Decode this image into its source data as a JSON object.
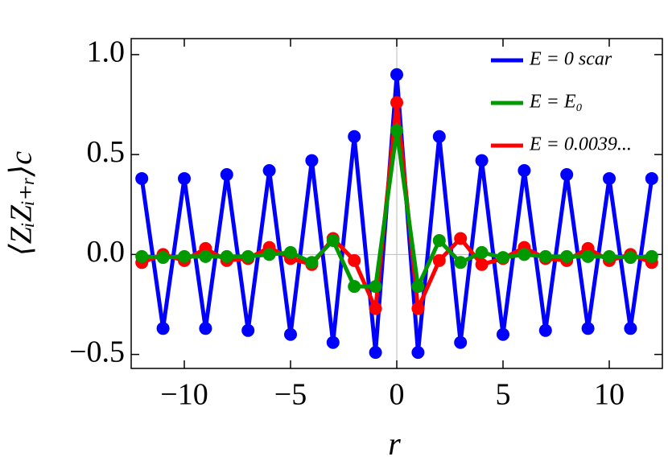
{
  "chart_data": {
    "type": "line",
    "x_label": "r",
    "y_label": "⟨ZᵢZᵢ₊ᵣ⟩c",
    "x": [
      -12,
      -11,
      -10,
      -9,
      -8,
      -7,
      -6,
      -5,
      -4,
      -3,
      -2,
      -1,
      0,
      1,
      2,
      3,
      4,
      5,
      6,
      7,
      8,
      9,
      10,
      11,
      12
    ],
    "series": [
      {
        "name": "E = 0 scar",
        "color": "#0000ff",
        "values": [
          0.38,
          -0.37,
          0.38,
          -0.37,
          0.4,
          -0.38,
          0.42,
          -0.4,
          0.47,
          -0.44,
          0.59,
          -0.49,
          0.9,
          -0.49,
          0.59,
          -0.44,
          0.47,
          -0.4,
          0.42,
          -0.38,
          0.4,
          -0.37,
          0.38,
          -0.37,
          0.38
        ]
      },
      {
        "name": "E = 0.0039...",
        "color": "#ff0000",
        "values": [
          -0.04,
          0,
          -0.03,
          0.03,
          -0.03,
          -0.02,
          0.035,
          -0.02,
          -0.05,
          0.08,
          -0.03,
          -0.27,
          0.76,
          -0.27,
          -0.03,
          0.08,
          -0.05,
          -0.02,
          0.035,
          -0.02,
          -0.03,
          0.03,
          -0.03,
          0,
          -0.04
        ]
      },
      {
        "name": "E = E₀",
        "color": "#009900",
        "values": [
          -0.01,
          -0.015,
          -0.01,
          -0.01,
          -0.01,
          -0.01,
          0,
          0.01,
          -0.04,
          0.07,
          -0.16,
          -0.16,
          0.62,
          -0.16,
          0.07,
          -0.04,
          0.01,
          -0.015,
          0,
          -0.01,
          -0.01,
          -0.01,
          -0.01,
          -0.015,
          -0.01
        ]
      }
    ],
    "legend_order": [
      0,
      2,
      1
    ],
    "xlim": [
      -12.5,
      12.5
    ],
    "ylim": [
      -0.57,
      1.08
    ],
    "xticks": [
      {
        "value": -10,
        "label": "−10"
      },
      {
        "value": -5,
        "label": "−5"
      },
      0,
      5,
      10
    ],
    "yticks": [
      {
        "value": -0.5,
        "label": "−0.5"
      },
      {
        "value": 0,
        "label": "0.0"
      },
      0.5,
      {
        "value": 1,
        "label": "1.0"
      }
    ],
    "zero_lines": true,
    "legend": "upper right"
  }
}
